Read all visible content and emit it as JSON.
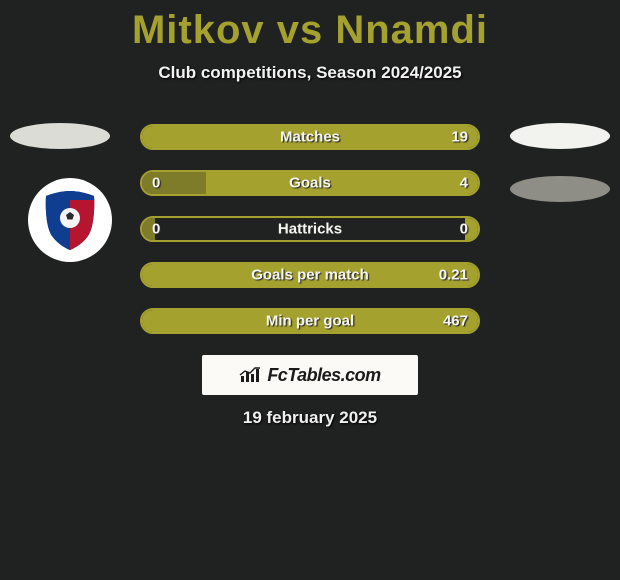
{
  "title_color": "#a5a12e",
  "player_left": "Mitkov",
  "player_right": "Nnamdi",
  "subtitle": "Club competitions, Season 2024/2025",
  "date": "19 february 2025",
  "brand": "FcTables.com",
  "oval_colors": {
    "left": "#dcdcd6",
    "right1": "#f2f2ef",
    "right2": "#8e8e87"
  },
  "bar_style": {
    "border_color": "#a5a12e",
    "left_fill": "#7e7c29",
    "right_fill": "#a5a12e",
    "text_color": "#f5f5f0"
  },
  "bars": [
    {
      "label": "Matches",
      "left": "",
      "right": "19",
      "left_pct": 0,
      "right_pct": 100
    },
    {
      "label": "Goals",
      "left": "0",
      "right": "4",
      "left_pct": 19,
      "right_pct": 81
    },
    {
      "label": "Hattricks",
      "left": "0",
      "right": "0",
      "left_pct": 4,
      "right_pct": 4
    },
    {
      "label": "Goals per match",
      "left": "",
      "right": "0.21",
      "left_pct": 0,
      "right_pct": 100
    },
    {
      "label": "Min per goal",
      "left": "",
      "right": "467",
      "left_pct": 0,
      "right_pct": 100
    }
  ],
  "badge": {
    "outer_bg": "#ffffff",
    "top_color": "#0f3e91",
    "bottom_color": "#b5152f",
    "ball_color": "#f5f5f5"
  }
}
